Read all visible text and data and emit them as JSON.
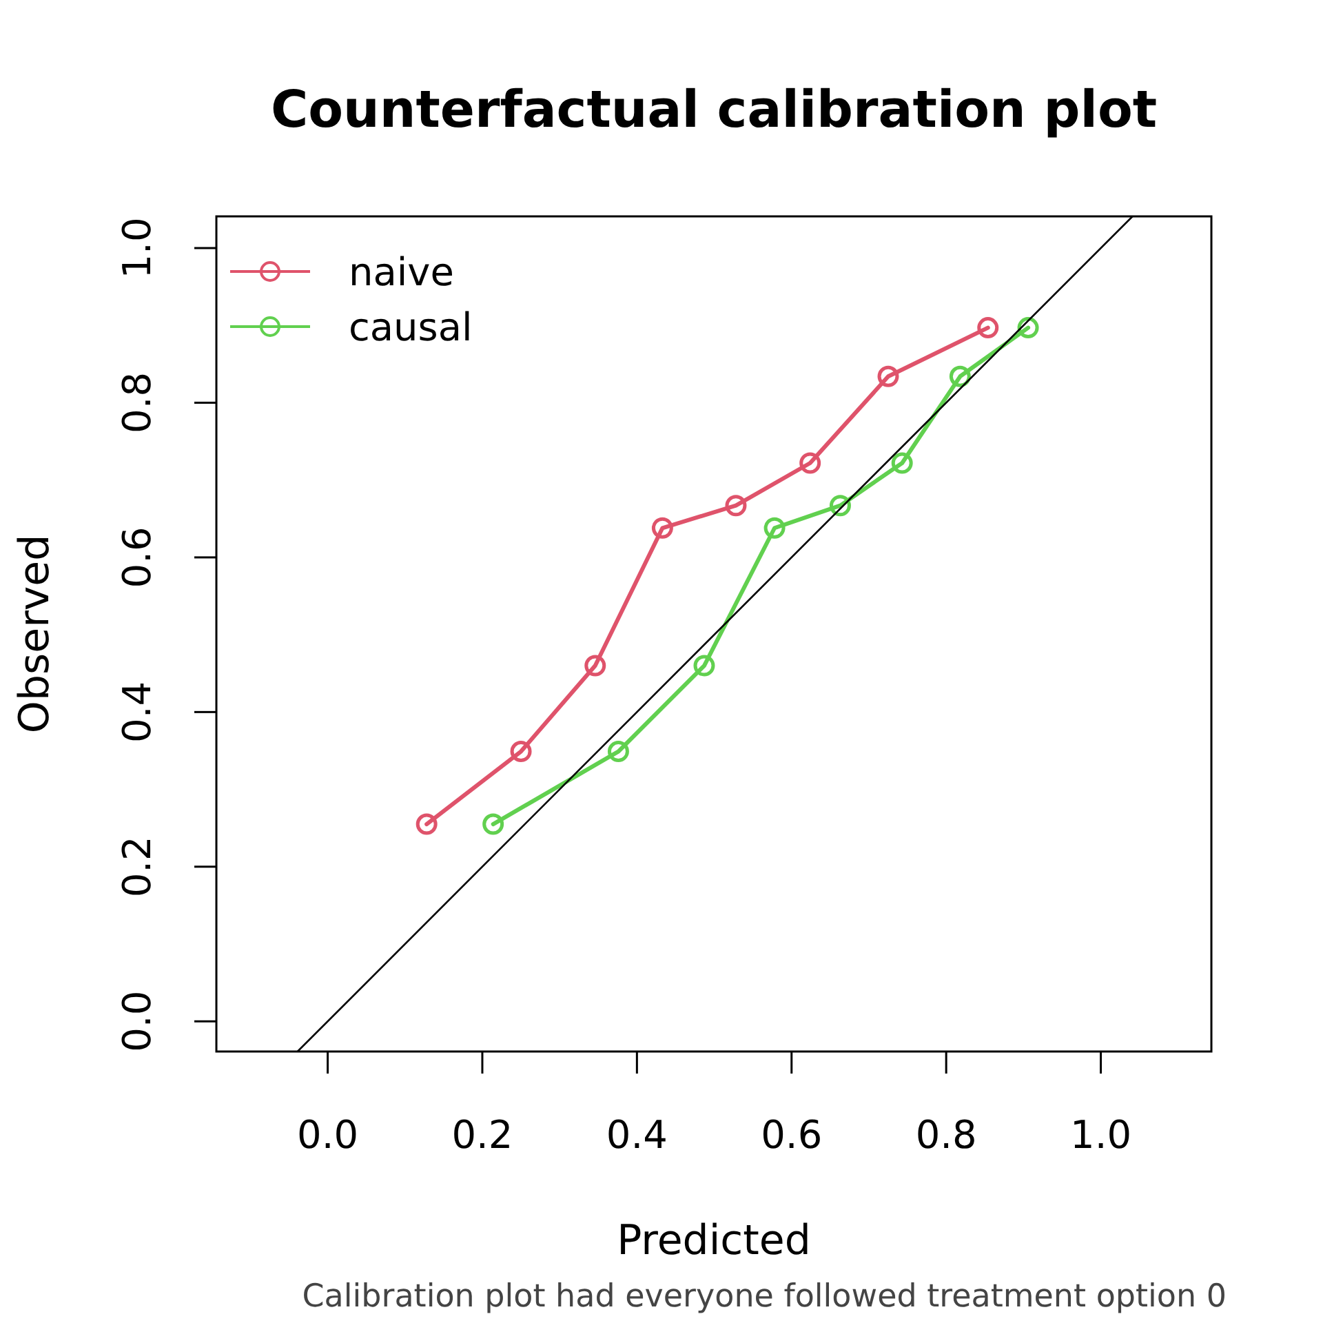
{
  "chart_data": {
    "type": "line",
    "title": "Counterfactual calibration plot",
    "xlabel": "Predicted",
    "ylabel": "Observed",
    "annotations": [
      "Calibration plot had everyone followed treatment option 0"
    ],
    "xlim": [
      -0.144,
      1.143
    ],
    "ylim": [
      -0.039,
      1.041
    ],
    "xticks": [
      {
        "value": 0,
        "label": "0.0"
      },
      0.2,
      0.4,
      0.6,
      0.8,
      {
        "value": 1,
        "label": "1.0"
      }
    ],
    "yticks": [
      {
        "value": 0,
        "label": "0.0"
      },
      0.2,
      0.4,
      0.6,
      0.8,
      {
        "value": 1,
        "label": "1.0"
      }
    ],
    "grid": false,
    "legend": "top left",
    "marker": "circle",
    "series": [
      {
        "name": "naive",
        "color": "#df536b",
        "x": [
          0.128,
          0.25,
          0.346,
          0.433,
          0.528,
          0.624,
          0.725,
          0.854
        ],
        "values": [
          0.255,
          0.349,
          0.46,
          0.638,
          0.667,
          0.722,
          0.834,
          0.897
        ]
      },
      {
        "name": "causal",
        "color": "#61d04f",
        "x": [
          0.214,
          0.376,
          0.487,
          0.578,
          0.663,
          0.743,
          0.818,
          0.906
        ],
        "values": [
          0.255,
          0.349,
          0.46,
          0.638,
          0.667,
          0.722,
          0.834,
          0.897
        ]
      },
      {
        "color": "#000000",
        "marker": "none",
        "x": [
          -0.039,
          1.041
        ],
        "values": [
          -0.039,
          1.041
        ]
      }
    ]
  }
}
